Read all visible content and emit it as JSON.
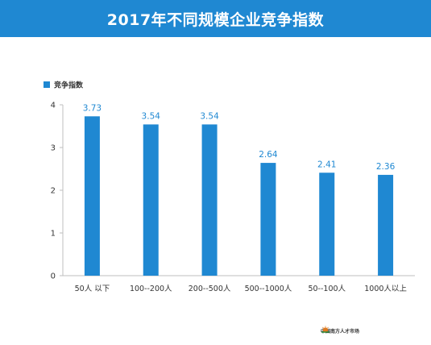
{
  "header": {
    "title": "2017年不同规模企业竞争指数"
  },
  "chart_data": {
    "type": "bar",
    "title": "2017年不同规模企业竞争指数",
    "xlabel": "",
    "ylabel": "",
    "categories": [
      "50人 以下",
      "100--200人",
      "200--500人",
      "500--1000人",
      "50--100人",
      "1000人以上"
    ],
    "series": [
      {
        "name": "竞争指数",
        "values": [
          3.73,
          3.54,
          3.54,
          2.64,
          2.41,
          2.36
        ]
      }
    ],
    "ylim": [
      0,
      4
    ],
    "yticks": [
      0,
      1,
      2,
      3,
      4
    ],
    "grid": false,
    "legend_position": "top-left",
    "colors": {
      "bar": "#1f88d2",
      "data_label": "#1f88d2",
      "axis": "#bfbfbf",
      "title_bar": "#1f88d2"
    }
  },
  "footer": {
    "logo_text": "中国南方人才市场",
    "logo_icon": "sun-logo-icon"
  }
}
